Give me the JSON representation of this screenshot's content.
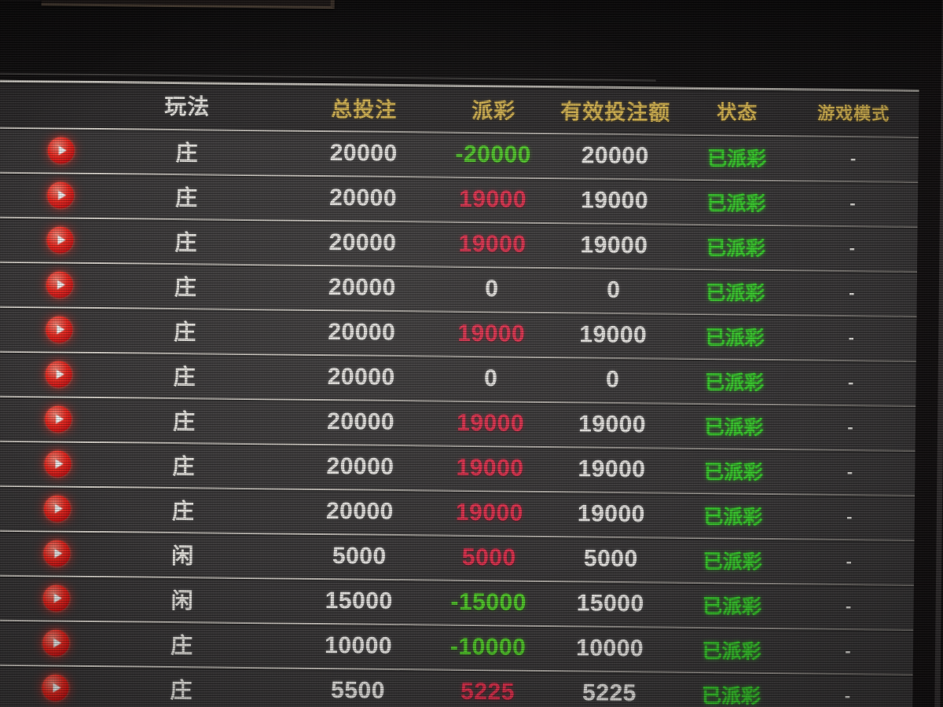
{
  "colors": {
    "header_text": "#dcba54",
    "body_text": "#efedea",
    "payout_red": "#e93250",
    "payout_green": "#55d22d",
    "status_green": "#3bd32f",
    "play_icon_red": "#f5281f",
    "row_background": "#3c3a3b",
    "divider": "#d6d1c9"
  },
  "table": {
    "headers": {
      "play": "玩法",
      "total": "总投注",
      "payout": "派彩",
      "valid": "有效投注额",
      "status": "状态",
      "mode": "游戏模式"
    },
    "rows": [
      {
        "play": "庄",
        "total": "20000",
        "payout": "-20000",
        "payout_color": "green",
        "valid": "20000",
        "status": "已派彩",
        "mode": "-"
      },
      {
        "play": "庄",
        "total": "20000",
        "payout": "19000",
        "payout_color": "red",
        "valid": "19000",
        "status": "已派彩",
        "mode": "-"
      },
      {
        "play": "庄",
        "total": "20000",
        "payout": "19000",
        "payout_color": "red",
        "valid": "19000",
        "status": "已派彩",
        "mode": "-"
      },
      {
        "play": "庄",
        "total": "20000",
        "payout": "0",
        "payout_color": "white",
        "valid": "0",
        "status": "已派彩",
        "mode": "-"
      },
      {
        "play": "庄",
        "total": "20000",
        "payout": "19000",
        "payout_color": "red",
        "valid": "19000",
        "status": "已派彩",
        "mode": "-"
      },
      {
        "play": "庄",
        "total": "20000",
        "payout": "0",
        "payout_color": "white",
        "valid": "0",
        "status": "已派彩",
        "mode": "-"
      },
      {
        "play": "庄",
        "total": "20000",
        "payout": "19000",
        "payout_color": "red",
        "valid": "19000",
        "status": "已派彩",
        "mode": "-"
      },
      {
        "play": "庄",
        "total": "20000",
        "payout": "19000",
        "payout_color": "red",
        "valid": "19000",
        "status": "已派彩",
        "mode": "-"
      },
      {
        "play": "庄",
        "total": "20000",
        "payout": "19000",
        "payout_color": "red",
        "valid": "19000",
        "status": "已派彩",
        "mode": "-"
      },
      {
        "play": "闲",
        "total": "5000",
        "payout": "5000",
        "payout_color": "red",
        "valid": "5000",
        "status": "已派彩",
        "mode": "-"
      },
      {
        "play": "闲",
        "total": "15000",
        "payout": "-15000",
        "payout_color": "green",
        "valid": "15000",
        "status": "已派彩",
        "mode": "-"
      },
      {
        "play": "庄",
        "total": "10000",
        "payout": "-10000",
        "payout_color": "green",
        "valid": "10000",
        "status": "已派彩",
        "mode": "-"
      },
      {
        "play": "庄",
        "total": "5500",
        "payout": "5225",
        "payout_color": "red",
        "valid": "5225",
        "status": "已派彩",
        "mode": "-"
      }
    ]
  }
}
